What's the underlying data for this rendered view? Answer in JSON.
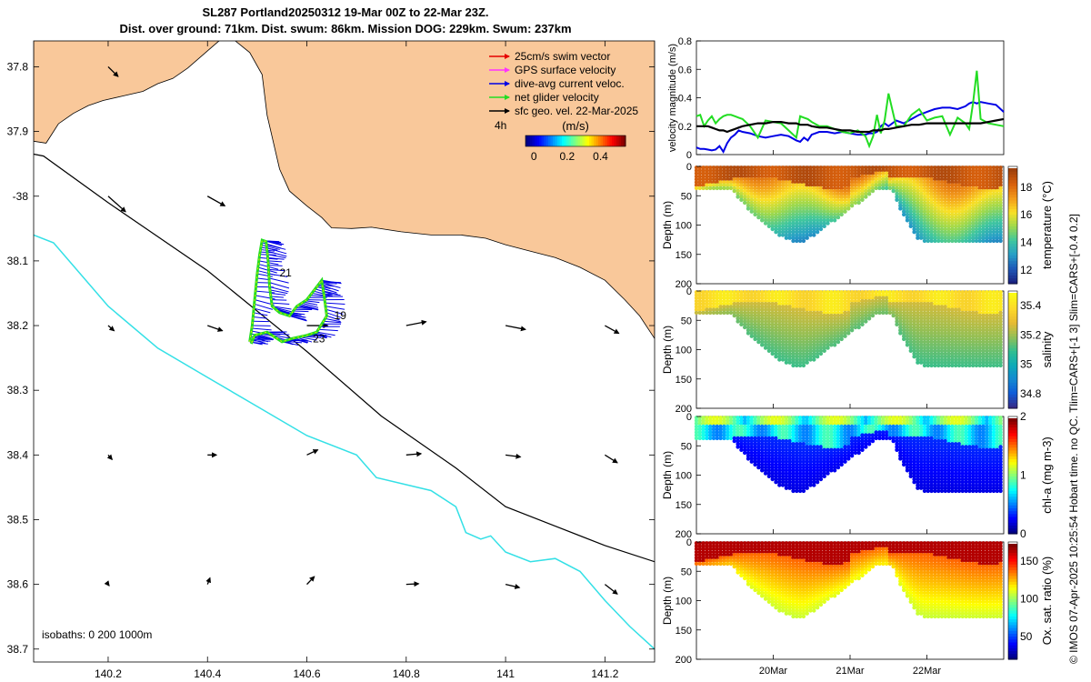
{
  "title_line1": "SL287 Portland20250312 19-Mar 00Z to 22-Mar 23Z.",
  "title_line2": "Dist. over ground: 71km. Dist. swum: 86km. Mission DOG: 229km. Swum: 237km",
  "side_note": "© IMOS 07-Apr-2025 10:25:54 Hobart time. no QC. Tlim=CARS+[-1 3] Slim=CARS+[-0.4 0.2]",
  "colors": {
    "land": "#F9C89A",
    "isobath_200": "#000000",
    "isobath_1000": "#33E0E6",
    "track": "#0000E6",
    "net": "#22DD22",
    "swim": "#E60000",
    "gps": "#FF33FF",
    "geo": "#000000"
  },
  "chart_data": [
    {
      "type": "map",
      "xlim": [
        140.05,
        141.3
      ],
      "ylim": [
        -38.72,
        -37.76
      ],
      "x_ticks": [
        140.2,
        140.4,
        140.6,
        140.8,
        141,
        141.2
      ],
      "x_tick_labels": [
        "140.2",
        "140.4",
        "140.6",
        "140.8",
        "141",
        "141.2"
      ],
      "y_ticks": [
        -37.8,
        -37.9,
        -38,
        -38.1,
        -38.2,
        -38.3,
        -38.4,
        -38.5,
        -38.6,
        -38.7
      ],
      "y_tick_labels": [
        "37.8",
        "37.9",
        "-38",
        "38.1",
        "38.2",
        "38.3",
        "38.4",
        "38.5",
        "38.6",
        "38.7"
      ],
      "isobath_label": "isobaths: 0   200  1000m",
      "legend": [
        {
          "label": "25cm/s swim vector",
          "color": "#E60000"
        },
        {
          "label": "GPS surface velocity",
          "color": "#FF33FF"
        },
        {
          "label": "dive-avg current veloc.",
          "color": "#0000E6"
        },
        {
          "label": "net glider velocity",
          "color": "#22DD22"
        },
        {
          "label": "sfc geo. vel. 22-Mar-2025",
          "color": "#000000"
        }
      ],
      "colorbar": {
        "left_label": "4h",
        "unit": "(m/s)",
        "ticks": [
          0,
          0.2,
          0.4
        ],
        "tick_labels": [
          "0",
          "0.2",
          "0.4"
        ],
        "lim": [
          -0.05,
          0.55
        ]
      },
      "annotations": [
        {
          "text": "21",
          "lon": 140.545,
          "lat": -38.124
        },
        {
          "text": "19",
          "lon": 140.655,
          "lat": -38.19
        },
        {
          "text": "23",
          "lon": 140.612,
          "lat": -38.226
        }
      ],
      "coast": [
        [
          140.05,
          -37.75
        ],
        [
          140.05,
          -37.915
        ],
        [
          140.075,
          -37.918
        ],
        [
          140.1,
          -37.888
        ],
        [
          140.13,
          -37.872
        ],
        [
          140.16,
          -37.86
        ],
        [
          140.19,
          -37.852
        ],
        [
          140.23,
          -37.845
        ],
        [
          140.27,
          -37.838
        ],
        [
          140.3,
          -37.826
        ],
        [
          140.33,
          -37.818
        ],
        [
          140.36,
          -37.802
        ],
        [
          140.39,
          -37.782
        ],
        [
          140.42,
          -37.762
        ],
        [
          140.44,
          -37.75
        ],
        [
          140.485,
          -37.778
        ],
        [
          140.51,
          -37.812
        ],
        [
          140.52,
          -37.875
        ],
        [
          140.545,
          -37.958
        ],
        [
          140.565,
          -37.992
        ],
        [
          140.6,
          -38.015
        ],
        [
          140.63,
          -38.033
        ],
        [
          140.65,
          -38.049
        ],
        [
          140.69,
          -38.05
        ],
        [
          140.73,
          -38.048
        ],
        [
          140.79,
          -38.055
        ],
        [
          140.85,
          -38.06
        ],
        [
          140.91,
          -38.06
        ],
        [
          140.96,
          -38.065
        ],
        [
          141.0,
          -38.075
        ],
        [
          141.05,
          -38.085
        ],
        [
          141.1,
          -38.095
        ],
        [
          141.15,
          -38.11
        ],
        [
          141.2,
          -38.13
        ],
        [
          141.24,
          -38.16
        ],
        [
          141.27,
          -38.185
        ],
        [
          141.3,
          -38.22
        ],
        [
          141.3,
          -37.75
        ]
      ],
      "isobath_200": [
        [
          140.05,
          -37.935
        ],
        [
          140.07,
          -37.938
        ],
        [
          140.2,
          -38.01
        ],
        [
          140.4,
          -38.115
        ],
        [
          140.6,
          -38.24
        ],
        [
          140.75,
          -38.34
        ],
        [
          140.9,
          -38.42
        ],
        [
          141.0,
          -38.48
        ],
        [
          141.1,
          -38.51
        ],
        [
          141.2,
          -38.54
        ],
        [
          141.3,
          -38.565
        ]
      ],
      "isobath_1000": [
        [
          140.05,
          -38.06
        ],
        [
          140.09,
          -38.072
        ],
        [
          140.2,
          -38.17
        ],
        [
          140.3,
          -38.235
        ],
        [
          140.4,
          -38.28
        ],
        [
          140.5,
          -38.325
        ],
        [
          140.6,
          -38.37
        ],
        [
          140.7,
          -38.4
        ],
        [
          140.74,
          -38.435
        ],
        [
          140.85,
          -38.455
        ],
        [
          140.9,
          -38.48
        ],
        [
          140.92,
          -38.52
        ],
        [
          140.95,
          -38.53
        ],
        [
          140.97,
          -38.525
        ],
        [
          141.0,
          -38.55
        ],
        [
          141.05,
          -38.565
        ],
        [
          141.1,
          -38.56
        ],
        [
          141.15,
          -38.58
        ],
        [
          141.2,
          -38.625
        ],
        [
          141.25,
          -38.665
        ],
        [
          141.3,
          -38.7
        ]
      ],
      "geo_vectors": [
        {
          "lon": 140.2,
          "lat": -37.8,
          "u": 0.02,
          "v": -0.015
        },
        {
          "lon": 140.2,
          "lat": -38.0,
          "u": 0.035,
          "v": -0.024
        },
        {
          "lon": 140.4,
          "lat": -38.0,
          "u": 0.035,
          "v": -0.015
        },
        {
          "lon": 140.2,
          "lat": -38.2,
          "u": 0.012,
          "v": -0.008
        },
        {
          "lon": 140.4,
          "lat": -38.2,
          "u": 0.03,
          "v": -0.008
        },
        {
          "lon": 140.6,
          "lat": -38.2,
          "u": 0.042,
          "v": 0.0
        },
        {
          "lon": 140.8,
          "lat": -38.2,
          "u": 0.04,
          "v": 0.006
        },
        {
          "lon": 141.0,
          "lat": -38.2,
          "u": 0.04,
          "v": -0.006
        },
        {
          "lon": 141.2,
          "lat": -38.2,
          "u": 0.028,
          "v": -0.012
        },
        {
          "lon": 140.2,
          "lat": -38.4,
          "u": 0.008,
          "v": -0.007
        },
        {
          "lon": 140.4,
          "lat": -38.4,
          "u": 0.018,
          "v": 0.0
        },
        {
          "lon": 140.6,
          "lat": -38.4,
          "u": 0.022,
          "v": 0.008
        },
        {
          "lon": 140.8,
          "lat": -38.4,
          "u": 0.03,
          "v": 0.002
        },
        {
          "lon": 141.0,
          "lat": -38.4,
          "u": 0.03,
          "v": -0.003
        },
        {
          "lon": 141.2,
          "lat": -38.4,
          "u": 0.025,
          "v": -0.012
        },
        {
          "lon": 140.2,
          "lat": -38.6,
          "u": 0.002,
          "v": -0.002
        },
        {
          "lon": 140.4,
          "lat": -38.6,
          "u": 0.005,
          "v": 0.01
        },
        {
          "lon": 140.6,
          "lat": -38.6,
          "u": 0.015,
          "v": 0.012
        },
        {
          "lon": 140.8,
          "lat": -38.6,
          "u": 0.025,
          "v": 0.001
        },
        {
          "lon": 141.0,
          "lat": -38.6,
          "u": 0.028,
          "v": -0.005
        },
        {
          "lon": 141.2,
          "lat": -38.6,
          "u": 0.025,
          "v": -0.015
        }
      ],
      "track": [
        [
          140.485,
          -38.225
        ],
        [
          140.49,
          -38.2
        ],
        [
          140.495,
          -38.16
        ],
        [
          140.5,
          -38.12
        ],
        [
          140.505,
          -38.09
        ],
        [
          140.51,
          -38.068
        ],
        [
          140.518,
          -38.07
        ],
        [
          140.522,
          -38.1
        ],
        [
          140.525,
          -38.14
        ],
        [
          140.53,
          -38.17
        ],
        [
          140.545,
          -38.18
        ],
        [
          140.565,
          -38.185
        ],
        [
          140.58,
          -38.17
        ],
        [
          140.6,
          -38.16
        ],
        [
          140.62,
          -38.14
        ],
        [
          140.63,
          -38.13
        ],
        [
          140.635,
          -38.155
        ],
        [
          140.64,
          -38.185
        ],
        [
          140.62,
          -38.21
        ],
        [
          140.6,
          -38.215
        ],
        [
          140.57,
          -38.22
        ],
        [
          140.55,
          -38.225
        ],
        [
          140.52,
          -38.21
        ],
        [
          140.495,
          -38.215
        ],
        [
          140.488,
          -38.228
        ]
      ]
    },
    {
      "type": "line",
      "ylabel": "velocity magnitude (m/s)",
      "xlim": [
        19.0,
        23.0
      ],
      "ylim": [
        0,
        0.8
      ],
      "y_ticks": [
        0,
        0.2,
        0.4,
        0.6,
        0.8
      ],
      "y_tick_labels": [
        "0",
        "0.2",
        "0.4",
        "0.6",
        "0.8"
      ],
      "x": [
        19.0,
        19.05,
        19.1,
        19.15,
        19.2,
        19.25,
        19.3,
        19.35,
        19.4,
        19.45,
        19.5,
        19.55,
        19.6,
        19.7,
        19.8,
        19.9,
        20.0,
        20.1,
        20.2,
        20.3,
        20.35,
        20.4,
        20.45,
        20.5,
        20.6,
        20.7,
        20.8,
        20.9,
        21.0,
        21.1,
        21.2,
        21.25,
        21.3,
        21.35,
        21.4,
        21.45,
        21.5,
        21.6,
        21.7,
        21.8,
        21.9,
        22.0,
        22.1,
        22.2,
        22.3,
        22.4,
        22.5,
        22.55,
        22.6,
        22.65,
        22.7,
        22.8,
        22.9,
        23.0
      ],
      "series": [
        {
          "color": "#0000E6",
          "values": [
            0.05,
            0.04,
            0.04,
            0.035,
            0.03,
            0.035,
            0.06,
            0.02,
            0.08,
            0.12,
            0.14,
            0.17,
            0.16,
            0.15,
            0.13,
            0.12,
            0.13,
            0.14,
            0.13,
            0.1,
            0.09,
            0.12,
            0.1,
            0.14,
            0.16,
            0.16,
            0.15,
            0.16,
            0.15,
            0.14,
            0.14,
            0.15,
            0.15,
            0.16,
            0.2,
            0.22,
            0.2,
            0.24,
            0.22,
            0.25,
            0.28,
            0.3,
            0.32,
            0.33,
            0.33,
            0.32,
            0.34,
            0.36,
            0.37,
            0.36,
            0.37,
            0.36,
            0.35,
            0.3
          ]
        },
        {
          "color": "#22DD22",
          "values": [
            0.27,
            0.28,
            0.2,
            0.24,
            0.27,
            0.22,
            0.25,
            0.27,
            0.28,
            0.28,
            0.27,
            0.26,
            0.25,
            0.2,
            0.12,
            0.24,
            0.23,
            0.22,
            0.17,
            0.12,
            0.27,
            0.26,
            0.25,
            0.23,
            0.2,
            0.2,
            0.18,
            0.16,
            0.15,
            0.17,
            0.13,
            0.06,
            0.13,
            0.28,
            0.15,
            0.24,
            0.43,
            0.2,
            0.2,
            0.28,
            0.32,
            0.24,
            0.26,
            0.27,
            0.14,
            0.26,
            0.22,
            0.18,
            0.36,
            0.59,
            0.25,
            0.22,
            0.21,
            0.2
          ]
        },
        {
          "color": "#000000",
          "values": [
            0.2,
            0.2,
            0.2,
            0.2,
            0.19,
            0.18,
            0.17,
            0.17,
            0.16,
            0.17,
            0.18,
            0.19,
            0.2,
            0.21,
            0.22,
            0.22,
            0.23,
            0.23,
            0.22,
            0.22,
            0.21,
            0.21,
            0.21,
            0.2,
            0.19,
            0.19,
            0.18,
            0.17,
            0.17,
            0.16,
            0.16,
            0.16,
            0.17,
            0.17,
            0.17,
            0.18,
            0.18,
            0.19,
            0.2,
            0.21,
            0.21,
            0.22,
            0.22,
            0.22,
            0.22,
            0.22,
            0.22,
            0.22,
            0.22,
            0.22,
            0.22,
            0.23,
            0.24,
            0.25
          ]
        }
      ]
    },
    {
      "type": "scatter",
      "ylabel": "Depth (m)",
      "colorbar_label": "temperature (°C)",
      "cb_ticks": [
        12,
        14,
        16,
        18
      ],
      "cb_tick_labels": [
        "12",
        "14",
        "16",
        "18"
      ],
      "cb_lim": [
        11,
        19.5
      ],
      "ylim": [
        0,
        200
      ],
      "y_ticks": [
        0,
        50,
        100,
        150,
        200
      ],
      "y_tick_labels": [
        "0",
        "50",
        "100",
        "150",
        "200"
      ]
    },
    {
      "type": "scatter",
      "ylabel": "Depth (m)",
      "colorbar_label": "salinity",
      "cb_ticks": [
        34.8,
        35,
        35.2,
        35.4
      ],
      "cb_tick_labels": [
        "34.8",
        "35",
        "35.2",
        "35.4"
      ],
      "cb_lim": [
        34.7,
        35.5
      ],
      "ylim": [
        0,
        200
      ],
      "y_ticks": [
        0,
        50,
        100,
        150,
        200
      ],
      "y_tick_labels": [
        "0",
        "50",
        "100",
        "150",
        "200"
      ]
    },
    {
      "type": "scatter",
      "ylabel": "Depth (m)",
      "colorbar_label": "chl-a (mg m-3)",
      "cb_ticks": [
        0,
        1,
        2
      ],
      "cb_tick_labels": [
        "0",
        "1",
        "2"
      ],
      "cb_lim": [
        0,
        2
      ],
      "ylim": [
        0,
        200
      ],
      "y_ticks": [
        0,
        50,
        100,
        150,
        200
      ],
      "y_tick_labels": [
        "0",
        "50",
        "100",
        "150",
        "200"
      ]
    },
    {
      "type": "scatter",
      "ylabel": "Depth (m)",
      "colorbar_label": "Ox. sat. ratio (%)",
      "cb_ticks": [
        50,
        100,
        150
      ],
      "cb_tick_labels": [
        "50",
        "100",
        "150"
      ],
      "cb_lim": [
        20,
        175
      ],
      "ylim": [
        0,
        200
      ],
      "y_ticks": [
        0,
        50,
        100,
        150,
        200
      ],
      "y_tick_labels": [
        "0",
        "50",
        "100",
        "150",
        "200"
      ],
      "x_ticks": [
        20,
        21,
        22
      ],
      "x_tick_labels": [
        "20Mar",
        "21Mar",
        "22Mar"
      ]
    }
  ]
}
